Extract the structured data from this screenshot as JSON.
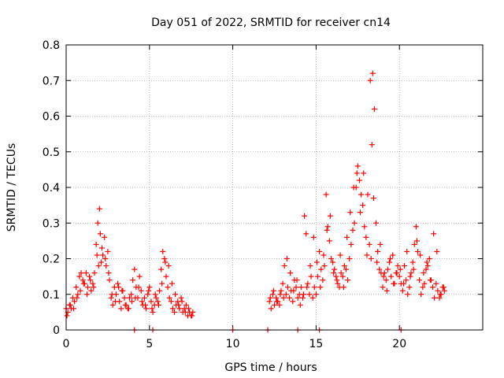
{
  "chart_data": {
    "type": "scatter",
    "title": "Day 051 of 2022, SRMTID for receiver cn14",
    "xlabel": "GPS time / hours",
    "ylabel": "SRMTID / TECUs",
    "xlim": [
      0,
      25
    ],
    "ylim": [
      0,
      0.8
    ],
    "xticks": [
      0,
      5,
      10,
      15,
      20
    ],
    "xtick_labels": [
      "0",
      "5",
      "10",
      "15",
      "20"
    ],
    "yticks": [
      0,
      0.1,
      0.2,
      0.3,
      0.4,
      0.5,
      0.6,
      0.7,
      0.8
    ],
    "ytick_labels": [
      "0",
      "0.1",
      "0.2",
      "0.3",
      "0.4",
      "0.5",
      "0.6",
      "0.7",
      "0.8"
    ],
    "grid": true,
    "marker": "plus",
    "marker_color": "#ff0000",
    "series": [
      {
        "name": "SRMTID",
        "x": [
          0.0,
          0.1,
          0.2,
          0.3,
          0.4,
          0.5,
          0.6,
          0.7,
          0.8,
          0.9,
          1.0,
          1.1,
          1.2,
          1.3,
          1.4,
          1.5,
          1.6,
          1.7,
          1.8,
          1.9,
          2.0,
          2.05,
          2.1,
          2.2,
          2.3,
          2.4,
          2.5,
          2.6,
          2.7,
          2.8,
          2.9,
          3.0,
          3.1,
          3.2,
          3.3,
          3.4,
          3.5,
          3.6,
          3.7,
          3.8,
          3.9,
          4.0,
          4.1,
          4.2,
          4.3,
          4.4,
          4.5,
          4.6,
          4.7,
          4.8,
          4.9,
          5.0,
          5.1,
          5.2,
          5.3,
          5.4,
          5.5,
          5.6,
          5.7,
          5.8,
          5.9,
          6.0,
          6.1,
          6.2,
          6.3,
          6.4,
          6.5,
          6.6,
          6.7,
          6.8,
          6.9,
          7.0,
          7.1,
          7.2,
          7.3,
          7.4,
          7.5,
          7.6,
          12.2,
          12.3,
          12.4,
          12.5,
          12.6,
          12.7,
          12.8,
          12.9,
          13.0,
          13.1,
          13.2,
          13.3,
          13.4,
          13.5,
          13.6,
          13.7,
          13.8,
          13.9,
          14.0,
          14.1,
          14.2,
          14.3,
          14.4,
          14.5,
          14.6,
          14.7,
          14.8,
          14.9,
          15.0,
          15.1,
          15.2,
          15.3,
          15.4,
          15.5,
          15.6,
          15.7,
          15.8,
          15.9,
          16.0,
          16.1,
          16.2,
          16.3,
          16.4,
          16.5,
          16.6,
          16.7,
          16.8,
          16.9,
          17.0,
          17.1,
          17.2,
          17.3,
          17.4,
          17.5,
          17.6,
          17.7,
          17.8,
          17.9,
          18.0,
          18.1,
          18.2,
          18.3,
          18.35,
          18.4,
          18.5,
          18.6,
          18.7,
          18.8,
          18.9,
          19.0,
          19.1,
          19.2,
          19.3,
          19.4,
          19.5,
          19.6,
          19.7,
          19.8,
          19.9,
          20.0,
          20.1,
          20.2,
          20.3,
          20.4,
          20.5,
          20.6,
          20.7,
          20.8,
          20.9,
          21.0,
          21.1,
          21.2,
          21.3,
          21.4,
          21.5,
          21.6,
          21.7,
          21.8,
          21.9,
          22.0,
          22.1,
          22.2,
          22.3,
          22.4,
          22.5,
          22.6,
          22.7,
          0.05,
          0.25,
          0.45,
          0.65,
          0.85,
          1.05,
          1.25,
          1.45,
          1.65,
          1.85,
          1.95,
          2.15,
          2.35,
          2.55,
          2.75,
          2.95,
          3.15,
          3.35,
          3.55,
          3.75,
          3.95,
          4.15,
          4.35,
          4.55,
          4.75,
          4.95,
          5.15,
          5.35,
          5.55,
          5.75,
          5.95,
          6.15,
          6.35,
          6.55,
          6.75,
          6.95,
          7.15,
          7.35,
          7.55,
          12.25,
          12.45,
          12.65,
          12.85,
          13.05,
          13.25,
          13.45,
          13.65,
          13.85,
          14.05,
          14.25,
          14.45,
          14.65,
          14.85,
          15.05,
          15.25,
          15.45,
          15.65,
          15.85,
          16.05,
          16.25,
          16.45,
          16.65,
          16.85,
          17.05,
          17.25,
          17.45,
          17.65,
          17.85,
          18.05,
          18.25,
          18.45,
          18.65,
          18.85,
          19.05,
          19.25,
          19.45,
          19.65,
          19.85,
          20.05,
          20.25,
          20.45,
          20.65,
          20.85,
          21.05,
          21.25,
          21.45,
          21.65,
          21.85,
          22.05,
          22.25,
          22.45,
          22.65,
          4.1,
          5.2,
          10.0,
          12.1,
          13.9,
          15.2,
          20.1
        ],
        "y": [
          0.06,
          0.05,
          0.07,
          0.06,
          0.09,
          0.08,
          0.12,
          0.1,
          0.15,
          0.16,
          0.14,
          0.13,
          0.16,
          0.12,
          0.15,
          0.11,
          0.13,
          0.16,
          0.24,
          0.3,
          0.34,
          0.27,
          0.19,
          0.21,
          0.26,
          0.18,
          0.22,
          0.14,
          0.09,
          0.07,
          0.12,
          0.1,
          0.13,
          0.08,
          0.06,
          0.11,
          0.09,
          0.07,
          0.06,
          0.09,
          0.1,
          0.14,
          0.17,
          0.12,
          0.09,
          0.15,
          0.11,
          0.07,
          0.09,
          0.06,
          0.1,
          0.12,
          0.08,
          0.05,
          0.07,
          0.09,
          0.08,
          0.11,
          0.17,
          0.22,
          0.2,
          0.15,
          0.12,
          0.09,
          0.08,
          0.06,
          0.05,
          0.07,
          0.08,
          0.06,
          0.09,
          0.05,
          0.06,
          0.07,
          0.04,
          0.05,
          0.04,
          0.05,
          0.08,
          0.06,
          0.1,
          0.07,
          0.09,
          0.08,
          0.07,
          0.11,
          0.13,
          0.18,
          0.1,
          0.12,
          0.09,
          0.11,
          0.08,
          0.14,
          0.12,
          0.09,
          0.1,
          0.12,
          0.09,
          0.32,
          0.27,
          0.13,
          0.1,
          0.15,
          0.09,
          0.12,
          0.1,
          0.15,
          0.22,
          0.17,
          0.14,
          0.18,
          0.38,
          0.29,
          0.25,
          0.2,
          0.19,
          0.17,
          0.15,
          0.13,
          0.12,
          0.16,
          0.15,
          0.18,
          0.17,
          0.14,
          0.2,
          0.24,
          0.28,
          0.3,
          0.4,
          0.46,
          0.42,
          0.38,
          0.35,
          0.29,
          0.26,
          0.38,
          0.24,
          0.2,
          0.52,
          0.72,
          0.62,
          0.3,
          0.22,
          0.17,
          0.16,
          0.12,
          0.16,
          0.14,
          0.17,
          0.19,
          0.15,
          0.21,
          0.13,
          0.16,
          0.18,
          0.15,
          0.13,
          0.11,
          0.18,
          0.14,
          0.1,
          0.12,
          0.16,
          0.19,
          0.24,
          0.29,
          0.22,
          0.14,
          0.1,
          0.12,
          0.13,
          0.17,
          0.18,
          0.2,
          0.14,
          0.12,
          0.09,
          0.13,
          0.11,
          0.09,
          0.1,
          0.12,
          0.11,
          0.04,
          0.07,
          0.06,
          0.09,
          0.11,
          0.13,
          0.1,
          0.14,
          0.12,
          0.21,
          0.18,
          0.23,
          0.2,
          0.16,
          0.1,
          0.08,
          0.12,
          0.11,
          0.07,
          0.06,
          0.08,
          0.09,
          0.12,
          0.08,
          0.07,
          0.11,
          0.06,
          0.1,
          0.07,
          0.13,
          0.19,
          0.18,
          0.13,
          0.1,
          0.07,
          0.08,
          0.05,
          0.06,
          0.04,
          0.09,
          0.11,
          0.08,
          0.1,
          0.09,
          0.2,
          0.16,
          0.11,
          0.14,
          0.07,
          0.1,
          0.12,
          0.18,
          0.26,
          0.19,
          0.12,
          0.21,
          0.28,
          0.32,
          0.16,
          0.14,
          0.21,
          0.12,
          0.26,
          0.33,
          0.4,
          0.44,
          0.33,
          0.44,
          0.21,
          0.7,
          0.37,
          0.19,
          0.24,
          0.15,
          0.11,
          0.2,
          0.13,
          0.16,
          0.17,
          0.13,
          0.22,
          0.15,
          0.17,
          0.25,
          0.21,
          0.16,
          0.19,
          0.14,
          0.27,
          0.22,
          0.1,
          0.12,
          0.0,
          0.0,
          0.0,
          0.0,
          0.0,
          0.0,
          0.0
        ]
      }
    ]
  }
}
